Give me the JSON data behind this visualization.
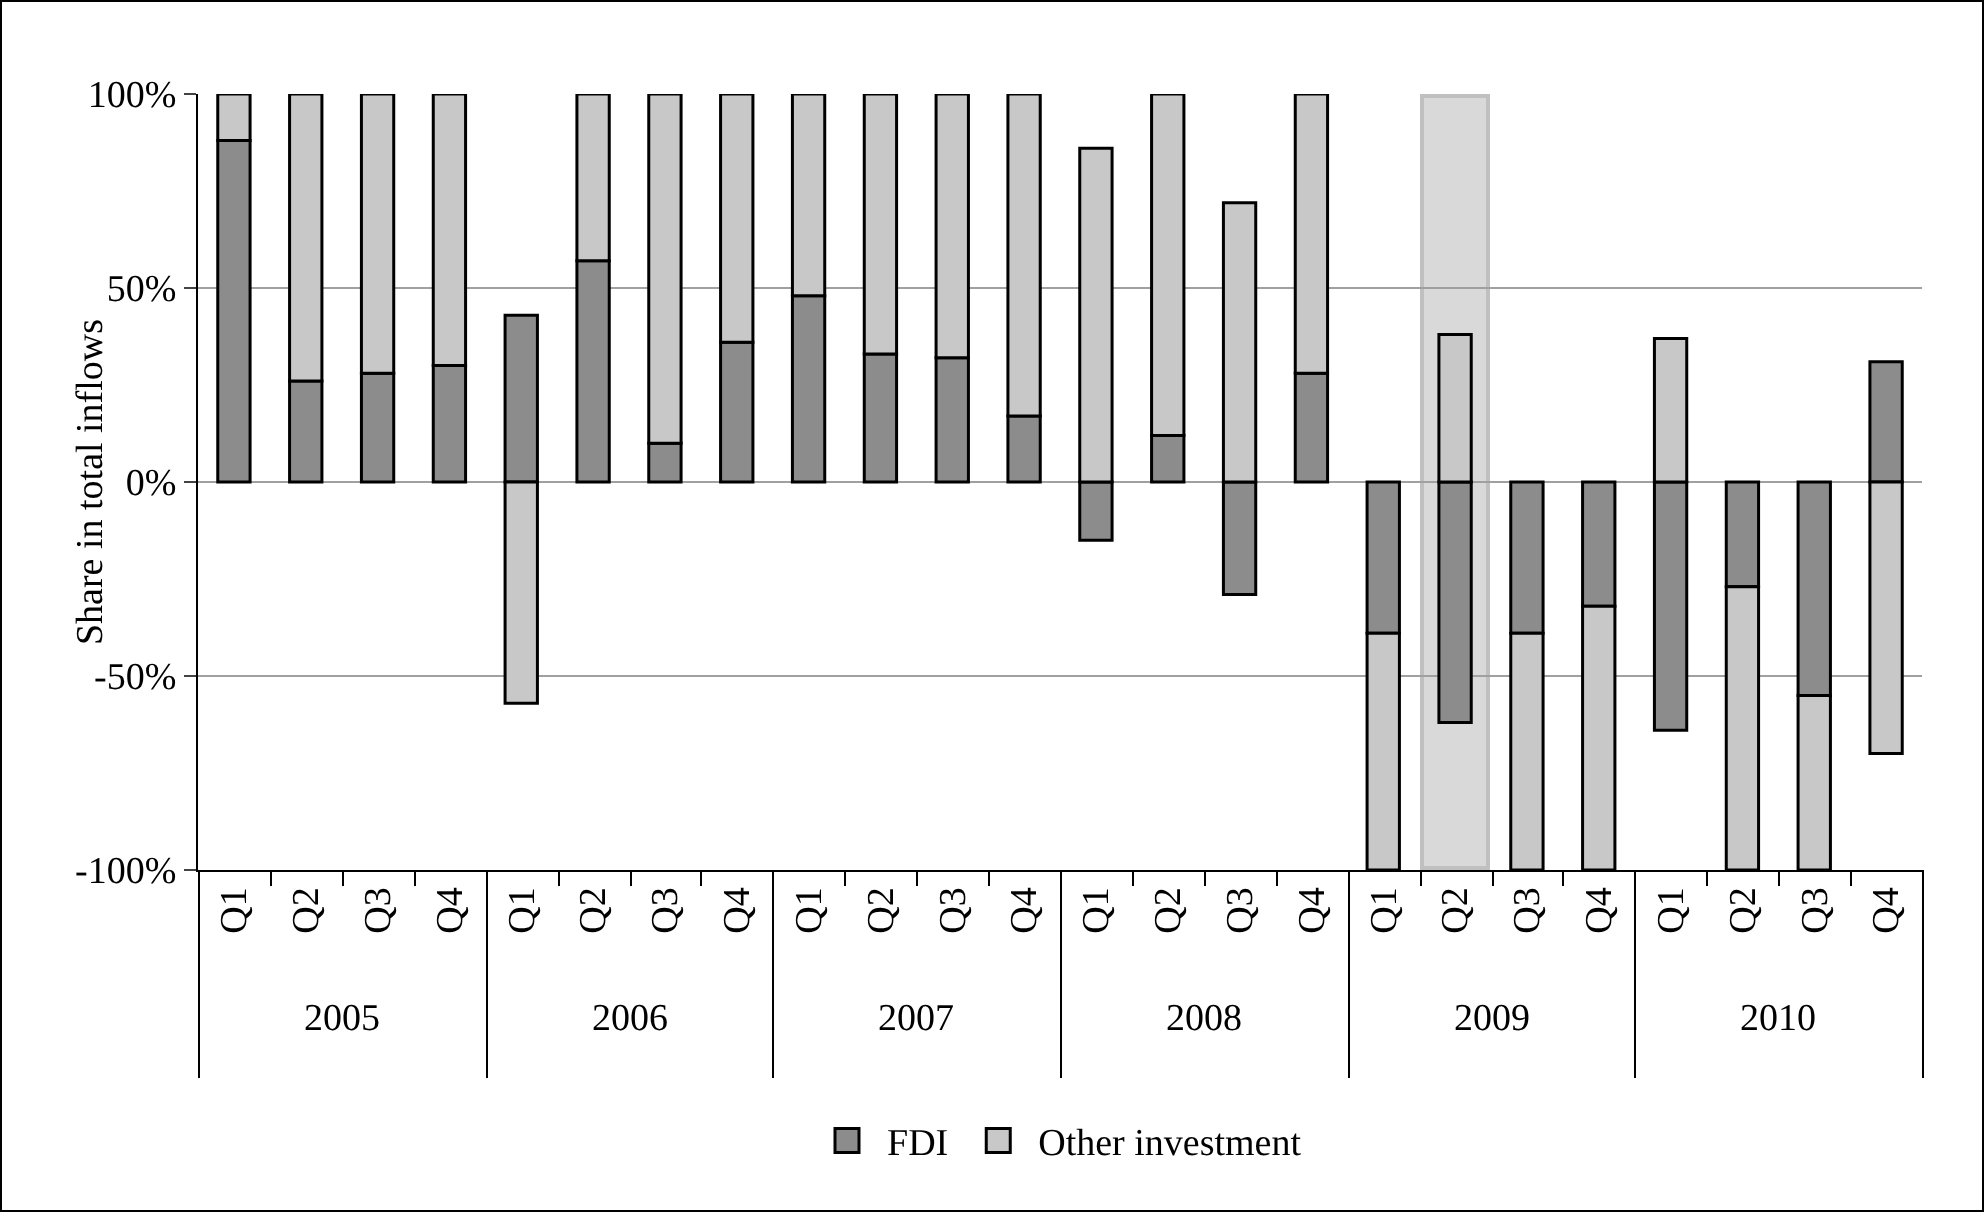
{
  "chart_data": {
    "type": "bar",
    "stacked": true,
    "ylabel": "Share in total inflows",
    "categories": [
      "Q1",
      "Q2",
      "Q3",
      "Q4",
      "Q1",
      "Q2",
      "Q3",
      "Q4",
      "Q1",
      "Q2",
      "Q3",
      "Q4",
      "Q1",
      "Q2",
      "Q3",
      "Q4",
      "Q1",
      "Q2",
      "Q3",
      "Q4",
      "Q1",
      "Q2",
      "Q3",
      "Q4"
    ],
    "series": [
      {
        "name": "FDI",
        "color": "#8c8c8c",
        "values": [
          88,
          26,
          28,
          30,
          43,
          57,
          10,
          36,
          48,
          33,
          32,
          17,
          -15,
          12,
          -29,
          28,
          -39,
          -62,
          -39,
          -32,
          -64,
          -27,
          -55,
          31
        ]
      },
      {
        "name": "Other investment",
        "color": "#c8c8c8",
        "values": [
          12,
          74,
          72,
          70,
          -57,
          43,
          90,
          64,
          52,
          67,
          68,
          83,
          86,
          88,
          72,
          72,
          -61,
          38,
          -61,
          -68,
          37,
          -73,
          -45,
          -70
        ]
      }
    ],
    "ylim": [
      -100,
      100
    ],
    "yticks": [
      {
        "value": -100,
        "label": "-100%"
      },
      {
        "value": -50,
        "label": "-50%"
      },
      {
        "value": 0,
        "label": "0%"
      },
      {
        "value": 50,
        "label": "50%"
      },
      {
        "value": 100,
        "label": "100%"
      }
    ],
    "grid": "y",
    "legend": "bottom",
    "annotations": [
      "2005",
      "2006",
      "2007",
      "2008",
      "2009",
      "2010"
    ]
  }
}
